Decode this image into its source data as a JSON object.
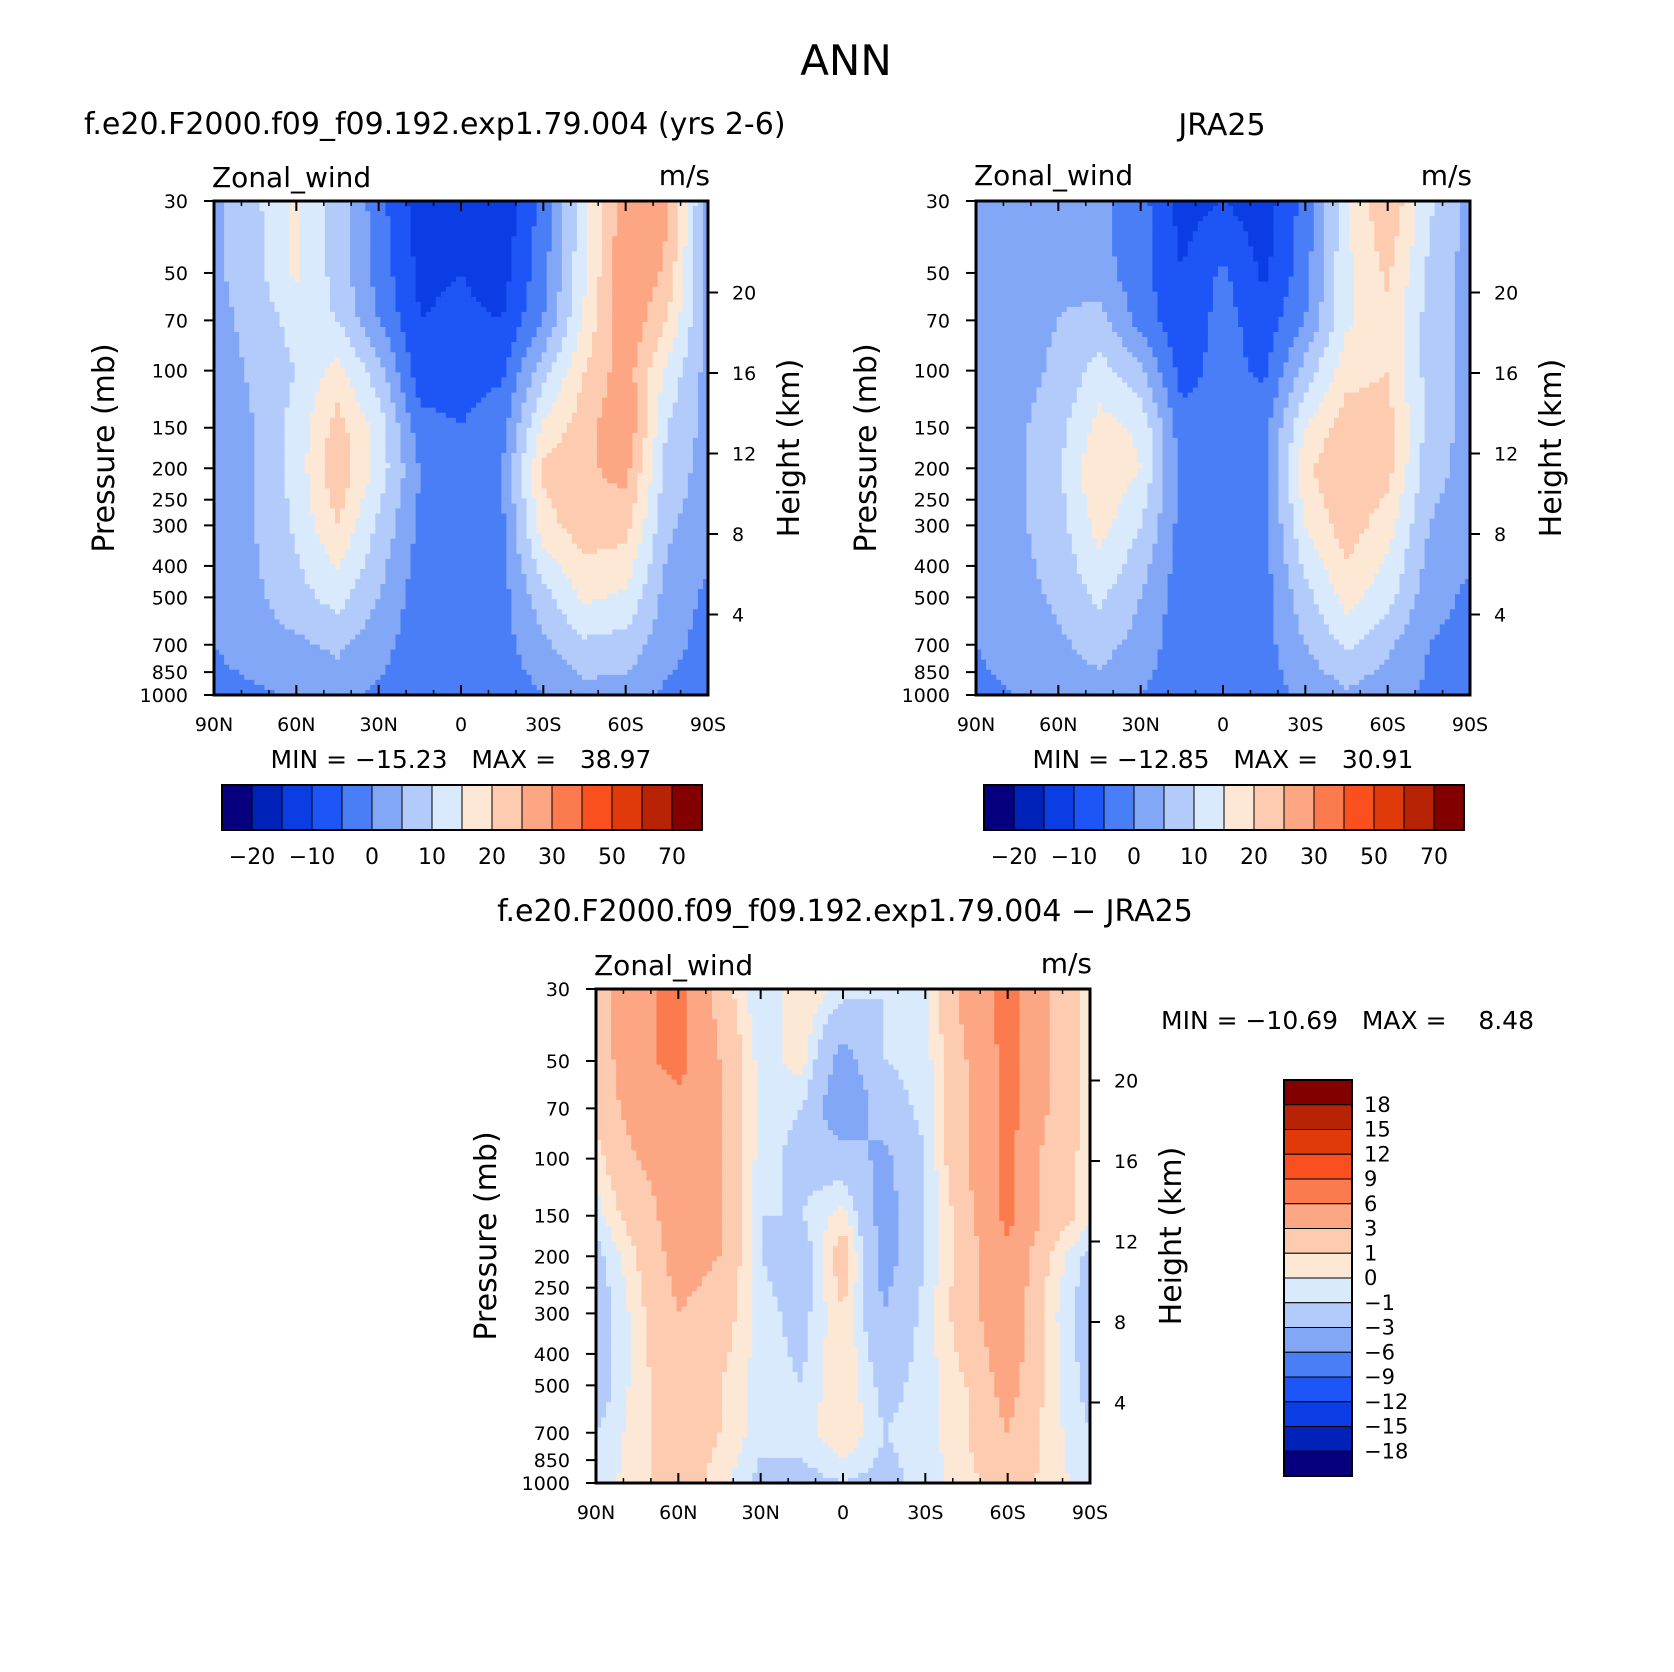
{
  "page_title": "ANN",
  "chart_data": [
    {
      "type": "heatmap",
      "panel_id": "model",
      "title": "f.e20.F2000.f09_f09.192.exp1.79.004 (yrs 2-6)",
      "variable_label": "Zonal_wind",
      "units_label": "m/s",
      "ylabel": "Pressure (mb)",
      "ylabel_right": "Height (km)",
      "xlim": [
        90,
        -90
      ],
      "ylim": [
        1000,
        30
      ],
      "x_ticks": [
        {
          "v": 90,
          "label": "90N"
        },
        {
          "v": 60,
          "label": "60N"
        },
        {
          "v": 30,
          "label": "30N"
        },
        {
          "v": 0,
          "label": "0"
        },
        {
          "v": -30,
          "label": "30S"
        },
        {
          "v": -60,
          "label": "60S"
        },
        {
          "v": -90,
          "label": "90S"
        }
      ],
      "y_ticks": [
        {
          "v": 30,
          "label": "30"
        },
        {
          "v": 50,
          "label": "50"
        },
        {
          "v": 70,
          "label": "70"
        },
        {
          "v": 100,
          "label": "100"
        },
        {
          "v": 150,
          "label": "150"
        },
        {
          "v": 200,
          "label": "200"
        },
        {
          "v": 250,
          "label": "250"
        },
        {
          "v": 300,
          "label": "300"
        },
        {
          "v": 400,
          "label": "400"
        },
        {
          "v": 500,
          "label": "500"
        },
        {
          "v": 700,
          "label": "700"
        },
        {
          "v": 850,
          "label": "850"
        },
        {
          "v": 1000,
          "label": "1000"
        }
      ],
      "height_ticks": [
        {
          "km": 4,
          "label": "4"
        },
        {
          "km": 8,
          "label": "8"
        },
        {
          "km": 12,
          "label": "12"
        },
        {
          "km": 16,
          "label": "16"
        },
        {
          "km": 20,
          "label": "20"
        }
      ],
      "min_max_label": "MIN = −15.23   MAX =   38.97",
      "colorbar_labels": [
        "−20",
        "−10",
        "0",
        "10",
        "20",
        "30",
        "50",
        "70"
      ],
      "grid": {
        "lat": [
          90,
          75,
          60,
          45,
          30,
          15,
          0,
          -15,
          -30,
          -45,
          -60,
          -75,
          -90
        ],
        "pressure": [
          30,
          50,
          70,
          100,
          150,
          200,
          300,
          500,
          700,
          1000
        ],
        "values": [
          [
            4,
            9,
            16,
            8,
            -3,
            -13,
            -12,
            -14,
            -3,
            14,
            28,
            26,
            3
          ],
          [
            4,
            8,
            16,
            8,
            -2,
            -11,
            -10,
            -12,
            -2,
            14,
            30,
            24,
            3
          ],
          [
            3,
            7,
            12,
            10,
            0,
            -10,
            -9,
            -10,
            0,
            16,
            30,
            20,
            3
          ],
          [
            2,
            6,
            10,
            17,
            7,
            -8,
            -7,
            -6,
            8,
            20,
            28,
            14,
            3
          ],
          [
            2,
            5,
            12,
            22,
            13,
            -3,
            -5,
            -2,
            16,
            23,
            30,
            10,
            3
          ],
          [
            2,
            5,
            12,
            24,
            13,
            0,
            -3,
            0,
            21,
            24,
            27,
            8,
            3
          ],
          [
            2,
            5,
            11,
            20,
            9,
            -1,
            -3,
            -1,
            18,
            23,
            22,
            6,
            2
          ],
          [
            1,
            4,
            8,
            12,
            5,
            -3,
            -5,
            -2,
            8,
            16,
            14,
            3,
            -1
          ],
          [
            0,
            3,
            4,
            6,
            2,
            -3,
            -5,
            -2,
            4,
            9,
            8,
            2,
            -2
          ],
          [
            -2,
            -1,
            1,
            2,
            -1,
            -3,
            -4,
            -3,
            0,
            3,
            3,
            -1,
            -3
          ]
        ]
      }
    },
    {
      "type": "heatmap",
      "panel_id": "obs",
      "title": "JRA25",
      "variable_label": "Zonal_wind",
      "units_label": "m/s",
      "ylabel": "Pressure (mb)",
      "ylabel_right": "Height (km)",
      "xlim": [
        90,
        -90
      ],
      "ylim": [
        1000,
        30
      ],
      "x_ticks": [
        {
          "v": 90,
          "label": "90N"
        },
        {
          "v": 60,
          "label": "60N"
        },
        {
          "v": 30,
          "label": "30N"
        },
        {
          "v": 0,
          "label": "0"
        },
        {
          "v": -30,
          "label": "30S"
        },
        {
          "v": -60,
          "label": "60S"
        },
        {
          "v": -90,
          "label": "90S"
        }
      ],
      "y_ticks": [
        {
          "v": 30,
          "label": "30"
        },
        {
          "v": 50,
          "label": "50"
        },
        {
          "v": 70,
          "label": "70"
        },
        {
          "v": 100,
          "label": "100"
        },
        {
          "v": 150,
          "label": "150"
        },
        {
          "v": 200,
          "label": "200"
        },
        {
          "v": 250,
          "label": "250"
        },
        {
          "v": 300,
          "label": "300"
        },
        {
          "v": 400,
          "label": "400"
        },
        {
          "v": 500,
          "label": "500"
        },
        {
          "v": 700,
          "label": "700"
        },
        {
          "v": 850,
          "label": "850"
        },
        {
          "v": 1000,
          "label": "1000"
        }
      ],
      "height_ticks": [
        {
          "km": 4,
          "label": "4"
        },
        {
          "km": 8,
          "label": "8"
        },
        {
          "km": 12,
          "label": "12"
        },
        {
          "km": 16,
          "label": "16"
        },
        {
          "km": 20,
          "label": "20"
        }
      ],
      "min_max_label": "MIN = −12.85   MAX =   30.91",
      "colorbar_labels": [
        "−20",
        "−10",
        "0",
        "10",
        "20",
        "30",
        "50",
        "70"
      ],
      "grid": {
        "lat": [
          90,
          75,
          60,
          45,
          30,
          15,
          0,
          -15,
          -30,
          -45,
          -60,
          -75,
          -90
        ],
        "pressure": [
          30,
          50,
          70,
          100,
          150,
          200,
          300,
          500,
          700,
          1000
        ],
        "values": [
          [
            2,
            3,
            4,
            1,
            -3,
            -12,
            -10,
            -13,
            -3,
            14,
            25,
            11,
            3
          ],
          [
            2,
            3,
            4,
            2,
            -3,
            -10,
            -4,
            -11,
            -2,
            14,
            21,
            9,
            3
          ],
          [
            2,
            3,
            5,
            7,
            -2,
            -9,
            -3,
            -8,
            0,
            14,
            19,
            8,
            3
          ],
          [
            2,
            3,
            6,
            12,
            6,
            -7,
            -3,
            -6,
            7,
            18,
            20,
            8,
            3
          ],
          [
            2,
            4,
            8,
            17,
            14,
            -3,
            -3,
            -2,
            15,
            23,
            22,
            8,
            3
          ],
          [
            2,
            4,
            9,
            20,
            15,
            -2,
            -4,
            -2,
            19,
            25,
            22,
            7,
            3
          ],
          [
            1,
            4,
            8,
            17,
            10,
            -2,
            -4,
            -2,
            15,
            23,
            17,
            5,
            2
          ],
          [
            1,
            3,
            6,
            11,
            5,
            -3,
            -4,
            -2,
            8,
            17,
            12,
            2,
            -1
          ],
          [
            0,
            2,
            4,
            7,
            3,
            -3,
            -4,
            -2,
            5,
            11,
            6,
            0,
            -2
          ],
          [
            -1,
            0,
            2,
            3,
            0,
            -3,
            -3,
            -2,
            1,
            4,
            2,
            -1,
            -2
          ]
        ]
      }
    },
    {
      "type": "heatmap",
      "panel_id": "diff",
      "title": "f.e20.F2000.f09_f09.192.exp1.79.004 − JRA25",
      "variable_label": "Zonal_wind",
      "units_label": "m/s",
      "ylabel": "Pressure (mb)",
      "ylabel_right": "Height (km)",
      "xlim": [
        90,
        -90
      ],
      "ylim": [
        1000,
        30
      ],
      "x_ticks": [
        {
          "v": 90,
          "label": "90N"
        },
        {
          "v": 60,
          "label": "60N"
        },
        {
          "v": 30,
          "label": "30N"
        },
        {
          "v": 0,
          "label": "0"
        },
        {
          "v": -30,
          "label": "30S"
        },
        {
          "v": -60,
          "label": "60S"
        },
        {
          "v": -90,
          "label": "90S"
        }
      ],
      "y_ticks": [
        {
          "v": 30,
          "label": "30"
        },
        {
          "v": 50,
          "label": "50"
        },
        {
          "v": 70,
          "label": "70"
        },
        {
          "v": 100,
          "label": "100"
        },
        {
          "v": 150,
          "label": "150"
        },
        {
          "v": 200,
          "label": "200"
        },
        {
          "v": 250,
          "label": "250"
        },
        {
          "v": 300,
          "label": "300"
        },
        {
          "v": 400,
          "label": "400"
        },
        {
          "v": 500,
          "label": "500"
        },
        {
          "v": 700,
          "label": "700"
        },
        {
          "v": 850,
          "label": "850"
        },
        {
          "v": 1000,
          "label": "1000"
        }
      ],
      "height_ticks": [
        {
          "km": 4,
          "label": "4"
        },
        {
          "km": 8,
          "label": "8"
        },
        {
          "km": 12,
          "label": "12"
        },
        {
          "km": 16,
          "label": "16"
        },
        {
          "km": 20,
          "label": "20"
        }
      ],
      "min_max_label": "MIN = −10.69   MAX =    8.48",
      "colorbar_labels": [
        "18",
        "15",
        "12",
        "9",
        "6",
        "3",
        "1",
        "0",
        "−1",
        "−3",
        "−6",
        "−9",
        "−12",
        "−15",
        "−18"
      ],
      "grid": {
        "lat": [
          90,
          75,
          60,
          45,
          30,
          15,
          0,
          -15,
          -30,
          -45,
          -60,
          -75,
          -90
        ],
        "pressure": [
          30,
          50,
          70,
          100,
          150,
          200,
          300,
          500,
          700,
          1000
        ],
        "values": [
          [
            1.5,
            5,
            7,
            2,
            -1,
            1,
            -0.5,
            -1,
            -0.5,
            4,
            7,
            3,
            0.5
          ],
          [
            1.5,
            5,
            7,
            3,
            -0.5,
            0.5,
            -4,
            -1,
            -0.5,
            3,
            7,
            3,
            0.5
          ],
          [
            1.5,
            4,
            5,
            3,
            -0.5,
            -1,
            -5,
            -2,
            -0.5,
            3,
            7,
            3,
            0.5
          ],
          [
            0.5,
            3,
            4,
            3,
            -0.5,
            -1.5,
            -2,
            -3.5,
            -1,
            3,
            7,
            2,
            0.5
          ],
          [
            -0.5,
            2,
            4,
            3,
            -1,
            -1,
            0.5,
            -4,
            -1,
            2,
            7,
            2,
            0.5
          ],
          [
            -1.5,
            1,
            4,
            3,
            -1,
            -2,
            2,
            -4,
            -1,
            2,
            5,
            1,
            -1.5
          ],
          [
            -2,
            0.5,
            3,
            2,
            -0.5,
            -1.5,
            1,
            -3,
            -0.5,
            2,
            5,
            0.5,
            -2
          ],
          [
            -2,
            0.5,
            2,
            1,
            -0.5,
            -1,
            1,
            -1.5,
            -0.5,
            1,
            4,
            0.5,
            -1.5
          ],
          [
            -1,
            0.5,
            2,
            1,
            -0.5,
            -0.5,
            1,
            -1,
            -0.5,
            1,
            3,
            0.5,
            -1
          ],
          [
            -0.5,
            0.5,
            2,
            0.5,
            -1.5,
            -1.5,
            -1,
            -1.5,
            -0.5,
            0.5,
            2,
            0.5,
            -0.5
          ]
        ]
      }
    }
  ],
  "colorscales": {
    "wind": {
      "levels": [
        -25,
        -20,
        -15,
        -10,
        -5,
        0,
        5,
        10,
        15,
        20,
        25,
        30,
        40,
        50,
        60,
        70
      ],
      "colors": [
        "#06007e",
        "#0022b8",
        "#0a3ee4",
        "#1e55f7",
        "#4a7ef7",
        "#82a7f7",
        "#b2cbfa",
        "#d9eafd",
        "#fde8d6",
        "#fdcbb0",
        "#fca683",
        "#fb7a4e",
        "#fa5020",
        "#e03a0a",
        "#b82306",
        "#820000"
      ]
    },
    "diff": {
      "levels": [
        -21,
        -18,
        -15,
        -12,
        -9,
        -6,
        -3,
        -1,
        0,
        1,
        3,
        6,
        9,
        12,
        15,
        18
      ],
      "colors": [
        "#06007e",
        "#0022b8",
        "#0a3ee4",
        "#1e55f7",
        "#4a7ef7",
        "#82a7f7",
        "#b2cbfa",
        "#d9eafd",
        "#fde8d6",
        "#fdcbb0",
        "#fca683",
        "#fb7a4e",
        "#fa5020",
        "#e03a0a",
        "#b82306",
        "#820000"
      ]
    }
  }
}
